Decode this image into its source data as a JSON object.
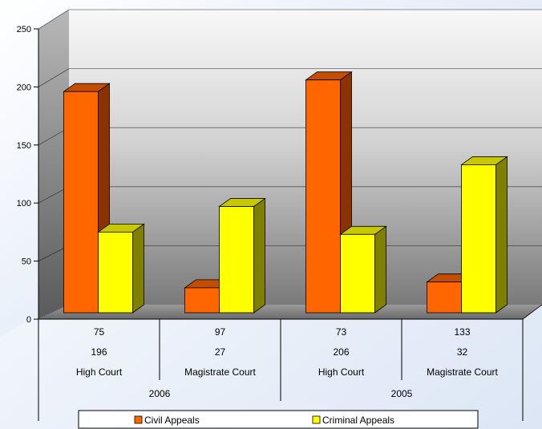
{
  "chart_data": {
    "type": "bar",
    "three_d": true,
    "title": "",
    "xlabel": "",
    "ylabel": "",
    "ylim": [
      0,
      250
    ],
    "yticks": [
      0,
      50,
      100,
      150,
      200,
      250
    ],
    "grid": true,
    "legend": "bottom",
    "data_table": true,
    "groups": [
      {
        "label": "2006",
        "categories": [
          "High Court",
          "Magistrate Court"
        ]
      },
      {
        "label": "2005",
        "categories": [
          "High Court",
          "Magistrate Court"
        ]
      }
    ],
    "categories": [
      "High Court",
      "Magistrate Court",
      "High Court",
      "Magistrate Court"
    ],
    "series": [
      {
        "name": "Civil Appeals",
        "color": "#ff6600",
        "side_color": "#8a3300",
        "top_color": "#c34e00",
        "values": [
          196,
          27,
          206,
          32
        ]
      },
      {
        "name": "Criminal Appeals",
        "color": "#ffff00",
        "side_color": "#808000",
        "top_color": "#c8c800",
        "values": [
          75,
          97,
          73,
          133
        ]
      }
    ],
    "table_row_order": [
      1,
      0
    ]
  }
}
